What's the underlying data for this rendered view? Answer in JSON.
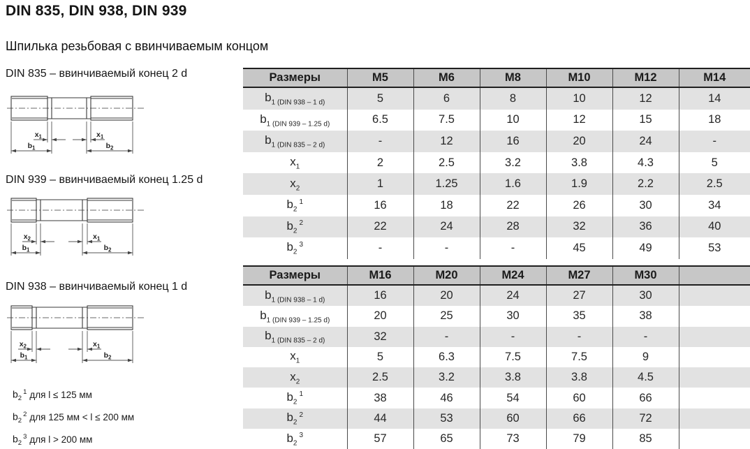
{
  "page": {
    "title": "DIN 835, DIN 938, DIN 939",
    "subtitle": "Шпилька резьбовая с ввинчиваемым концом"
  },
  "colors": {
    "header_bg": "#c7c7c7",
    "row_stripe": "#e2e2e2",
    "table_border": "#1f1f1f"
  },
  "drawings": [
    {
      "label": "DIN 835 – ввинчиваемый конец 2 d",
      "dims": {
        "left_x": {
          "base": "x",
          "sub": "1"
        },
        "right_x": {
          "base": "x",
          "sub": "1"
        },
        "left_b": {
          "base": "b",
          "sub": "1"
        },
        "right_b": {
          "base": "b",
          "sub": "2"
        }
      }
    },
    {
      "label": "DIN 939 – ввинчиваемый конец 1.25 d",
      "dims": {
        "left_x": {
          "base": "x",
          "sub": "2"
        },
        "right_x": {
          "base": "x",
          "sub": "1"
        },
        "left_b": {
          "base": "b",
          "sub": "1"
        },
        "right_b": {
          "base": "b",
          "sub": "2"
        }
      }
    },
    {
      "label": "DIN 938 – ввинчиваемый конец 1 d",
      "dims": {
        "left_x": {
          "base": "x",
          "sub": "2"
        },
        "right_x": {
          "base": "x",
          "sub": "1"
        },
        "left_b": {
          "base": "b",
          "sub": "1"
        },
        "right_b": {
          "base": "b",
          "sub": "2"
        }
      }
    }
  ],
  "footnotes": [
    {
      "base": "b",
      "sub": "2",
      "sup": "1",
      "text": "для l ≤ 125 мм"
    },
    {
      "base": "b",
      "sub": "2",
      "sup": "2",
      "text": "для 125 мм < l ≤ 200 мм"
    },
    {
      "base": "b",
      "sub": "2",
      "sup": "3",
      "text": "для l > 200 мм"
    }
  ],
  "tables": [
    {
      "header": [
        "Размеры",
        "M5",
        "M6",
        "M8",
        "M10",
        "M12",
        "M14"
      ],
      "rows": [
        {
          "label": {
            "base": "b",
            "sub": "1 (DIN 938 – 1 d)"
          },
          "values": [
            "5",
            "6",
            "8",
            "10",
            "12",
            "14"
          ]
        },
        {
          "label": {
            "base": "b",
            "sub": "1 (DIN 939 – 1.25 d)"
          },
          "values": [
            "6.5",
            "7.5",
            "10",
            "12",
            "15",
            "18"
          ]
        },
        {
          "label": {
            "base": "b",
            "sub": "1 (DIN 835 – 2 d)"
          },
          "values": [
            "-",
            "12",
            "16",
            "20",
            "24",
            "-"
          ]
        },
        {
          "label": {
            "base": "x",
            "sub": "1"
          },
          "values": [
            "2",
            "2.5",
            "3.2",
            "3.8",
            "4.3",
            "5"
          ]
        },
        {
          "label": {
            "base": "x",
            "sub": "2"
          },
          "values": [
            "1",
            "1.25",
            "1.6",
            "1.9",
            "2.2",
            "2.5"
          ]
        },
        {
          "label": {
            "base": "b",
            "sub": "2",
            "sup": "1"
          },
          "values": [
            "16",
            "18",
            "22",
            "26",
            "30",
            "34"
          ]
        },
        {
          "label": {
            "base": "b",
            "sub": "2",
            "sup": "2"
          },
          "values": [
            "22",
            "24",
            "28",
            "32",
            "36",
            "40"
          ]
        },
        {
          "label": {
            "base": "b",
            "sub": "2",
            "sup": "3"
          },
          "values": [
            "-",
            "-",
            "-",
            "45",
            "49",
            "53"
          ]
        }
      ]
    },
    {
      "header": [
        "Размеры",
        "M16",
        "M20",
        "M24",
        "M27",
        "M30",
        ""
      ],
      "rows": [
        {
          "label": {
            "base": "b",
            "sub": "1 (DIN 938 – 1 d)"
          },
          "values": [
            "16",
            "20",
            "24",
            "27",
            "30",
            ""
          ]
        },
        {
          "label": {
            "base": "b",
            "sub": "1 (DIN 939 – 1.25 d)"
          },
          "values": [
            "20",
            "25",
            "30",
            "35",
            "38",
            ""
          ]
        },
        {
          "label": {
            "base": "b",
            "sub": "1 (DIN 835 – 2 d)"
          },
          "values": [
            "32",
            "-",
            "-",
            "-",
            "-",
            ""
          ]
        },
        {
          "label": {
            "base": "x",
            "sub": "1"
          },
          "values": [
            "5",
            "6.3",
            "7.5",
            "7.5",
            "9",
            ""
          ]
        },
        {
          "label": {
            "base": "x",
            "sub": "2"
          },
          "values": [
            "2.5",
            "3.2",
            "3.8",
            "3.8",
            "4.5",
            ""
          ]
        },
        {
          "label": {
            "base": "b",
            "sub": "2",
            "sup": "1"
          },
          "values": [
            "38",
            "46",
            "54",
            "60",
            "66",
            ""
          ]
        },
        {
          "label": {
            "base": "b",
            "sub": "2",
            "sup": "2"
          },
          "values": [
            "44",
            "53",
            "60",
            "66",
            "72",
            ""
          ]
        },
        {
          "label": {
            "base": "b",
            "sub": "2",
            "sup": "3"
          },
          "values": [
            "57",
            "65",
            "73",
            "79",
            "85",
            ""
          ]
        }
      ]
    }
  ]
}
